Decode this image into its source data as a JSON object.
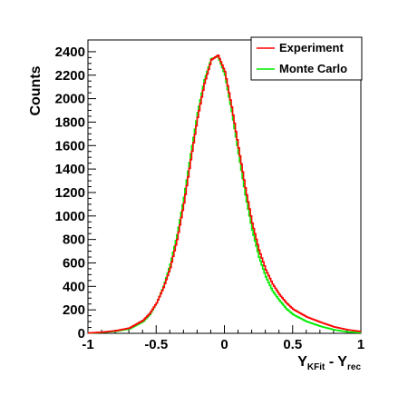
{
  "chart_data": {
    "type": "line",
    "style": "histogram-step",
    "ylabel": "Counts",
    "xlabel": {
      "main": "Y",
      "sub1": "KFit",
      "mid": " - Y",
      "sub2": "rec"
    },
    "xlim": [
      -1,
      1
    ],
    "ylim": [
      0,
      2500
    ],
    "x_ticks": [
      -1,
      -0.5,
      0,
      0.5,
      1
    ],
    "x_tick_labels": [
      "-1",
      "-0.5",
      "0",
      "0.5",
      "1"
    ],
    "y_ticks": [
      0,
      200,
      400,
      600,
      800,
      1000,
      1200,
      1400,
      1600,
      1800,
      2000,
      2200,
      2400
    ],
    "y_tick_labels": [
      "0",
      "200",
      "400",
      "600",
      "800",
      "1000",
      "1200",
      "1400",
      "1600",
      "1800",
      "2000",
      "2200",
      "2400"
    ],
    "legend": {
      "position": "top-right",
      "entries": [
        "Experiment",
        "Monte Carlo"
      ]
    },
    "series": [
      {
        "name": "Experiment",
        "color": "#ff0000",
        "x": [
          -1.0,
          -0.9,
          -0.8,
          -0.7,
          -0.6,
          -0.55,
          -0.5,
          -0.45,
          -0.4,
          -0.35,
          -0.3,
          -0.25,
          -0.2,
          -0.15,
          -0.1,
          -0.05,
          0.0,
          0.05,
          0.1,
          0.15,
          0.2,
          0.25,
          0.3,
          0.35,
          0.4,
          0.45,
          0.5,
          0.6,
          0.7,
          0.8,
          0.9,
          1.0
        ],
        "y": [
          3,
          10,
          22,
          45,
          110,
          170,
          260,
          390,
          560,
          800,
          1110,
          1480,
          1840,
          2130,
          2330,
          2370,
          2230,
          1930,
          1580,
          1240,
          940,
          710,
          540,
          420,
          330,
          260,
          205,
          140,
          95,
          55,
          30,
          15
        ]
      },
      {
        "name": "Monte Carlo",
        "color": "#00ee00",
        "x": [
          -1.0,
          -0.9,
          -0.8,
          -0.7,
          -0.6,
          -0.55,
          -0.5,
          -0.45,
          -0.4,
          -0.35,
          -0.3,
          -0.25,
          -0.2,
          -0.15,
          -0.1,
          -0.05,
          0.0,
          0.05,
          0.1,
          0.15,
          0.2,
          0.25,
          0.3,
          0.35,
          0.4,
          0.45,
          0.5,
          0.6,
          0.7,
          0.8,
          0.9,
          1.0
        ],
        "y": [
          2,
          8,
          18,
          38,
          100,
          160,
          260,
          400,
          590,
          840,
          1160,
          1530,
          1880,
          2160,
          2340,
          2360,
          2200,
          1890,
          1530,
          1180,
          880,
          650,
          480,
          360,
          280,
          210,
          160,
          100,
          60,
          30,
          12,
          5
        ]
      }
    ]
  }
}
